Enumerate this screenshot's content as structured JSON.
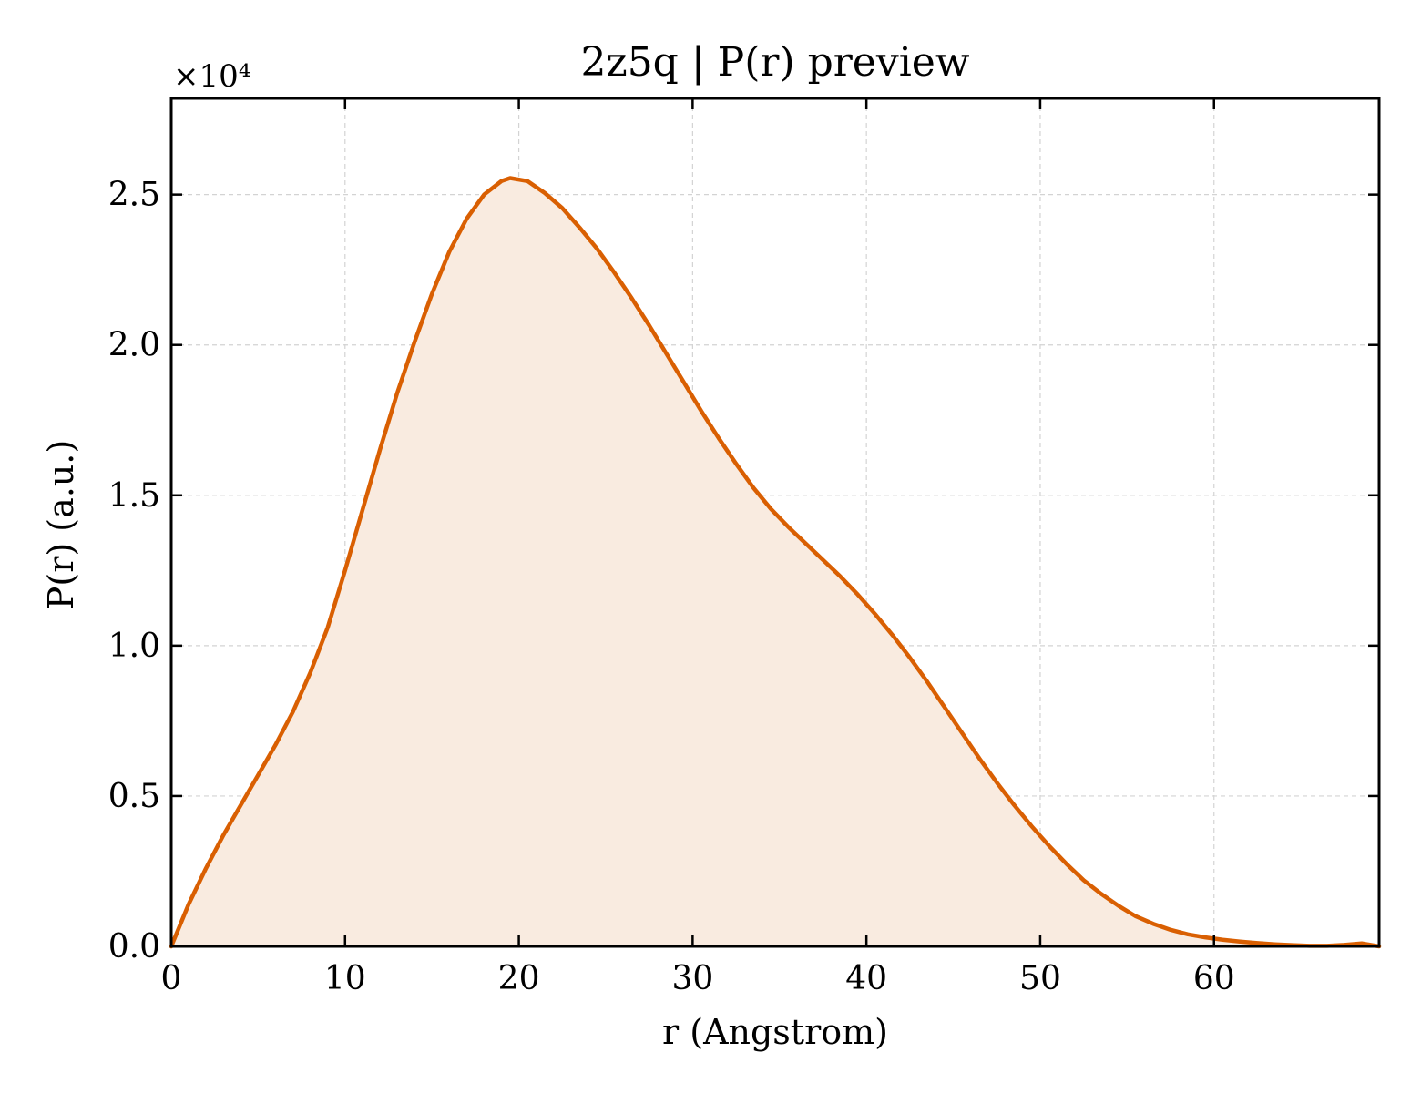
{
  "chart_data": {
    "type": "area",
    "title": "2z5q | P(r) preview",
    "xlabel": "r (Angstrom)",
    "ylabel": "P(r) (a.u.)",
    "y_multiplier_label": "×10⁴",
    "xlim": [
      0,
      69.5
    ],
    "ylim": [
      0,
      2.82
    ],
    "y_units_scale": 10000,
    "xticks": [
      0,
      10,
      20,
      30,
      40,
      50,
      60
    ],
    "yticks": [
      0.0,
      0.5,
      1.0,
      1.5,
      2.0,
      2.5
    ],
    "xtick_labels": [
      "0",
      "10",
      "20",
      "30",
      "40",
      "50",
      "60"
    ],
    "ytick_labels": [
      "0.0",
      "0.5",
      "1.0",
      "1.5",
      "2.0",
      "2.5"
    ],
    "grid": true,
    "grid_style": "dashed",
    "line_color": "#d95f02",
    "fill_color": "#f9ebe0",
    "series": [
      {
        "x": [
          0,
          1,
          2,
          3,
          4,
          5,
          6,
          7,
          8,
          9,
          10,
          11,
          12,
          13,
          14,
          15,
          16,
          17,
          18,
          19,
          19.5,
          20.5,
          21.5,
          22.5,
          23.5,
          24.5,
          25.5,
          26.5,
          27.5,
          28.5,
          29.5,
          30.5,
          31.5,
          32.5,
          33.5,
          34.5,
          35.5,
          36.5,
          37.5,
          38.5,
          39.5,
          40.5,
          41.5,
          42.5,
          43.5,
          44.5,
          45.5,
          46.5,
          47.5,
          48.5,
          49.5,
          50.5,
          51.5,
          52.5,
          53.5,
          54.5,
          55.5,
          56.5,
          57.5,
          58.5,
          59.5,
          60.5,
          61.5,
          62.5,
          63.5,
          64.5,
          65.5,
          66.5,
          67.5,
          68.5,
          69.5
        ],
        "y": [
          0.0,
          0.14,
          0.26,
          0.37,
          0.47,
          0.57,
          0.67,
          0.78,
          0.91,
          1.06,
          1.25,
          1.45,
          1.65,
          1.84,
          2.01,
          2.17,
          2.31,
          2.42,
          2.5,
          2.545,
          2.555,
          2.545,
          2.505,
          2.455,
          2.39,
          2.32,
          2.24,
          2.155,
          2.065,
          1.97,
          1.875,
          1.78,
          1.69,
          1.605,
          1.525,
          1.455,
          1.395,
          1.34,
          1.285,
          1.23,
          1.17,
          1.105,
          1.035,
          0.96,
          0.88,
          0.795,
          0.71,
          0.625,
          0.545,
          0.47,
          0.4,
          0.335,
          0.275,
          0.22,
          0.175,
          0.135,
          0.1,
          0.075,
          0.055,
          0.04,
          0.03,
          0.022,
          0.016,
          0.011,
          0.007,
          0.004,
          0.002,
          0.002,
          0.005,
          0.01,
          0.0
        ]
      }
    ]
  }
}
